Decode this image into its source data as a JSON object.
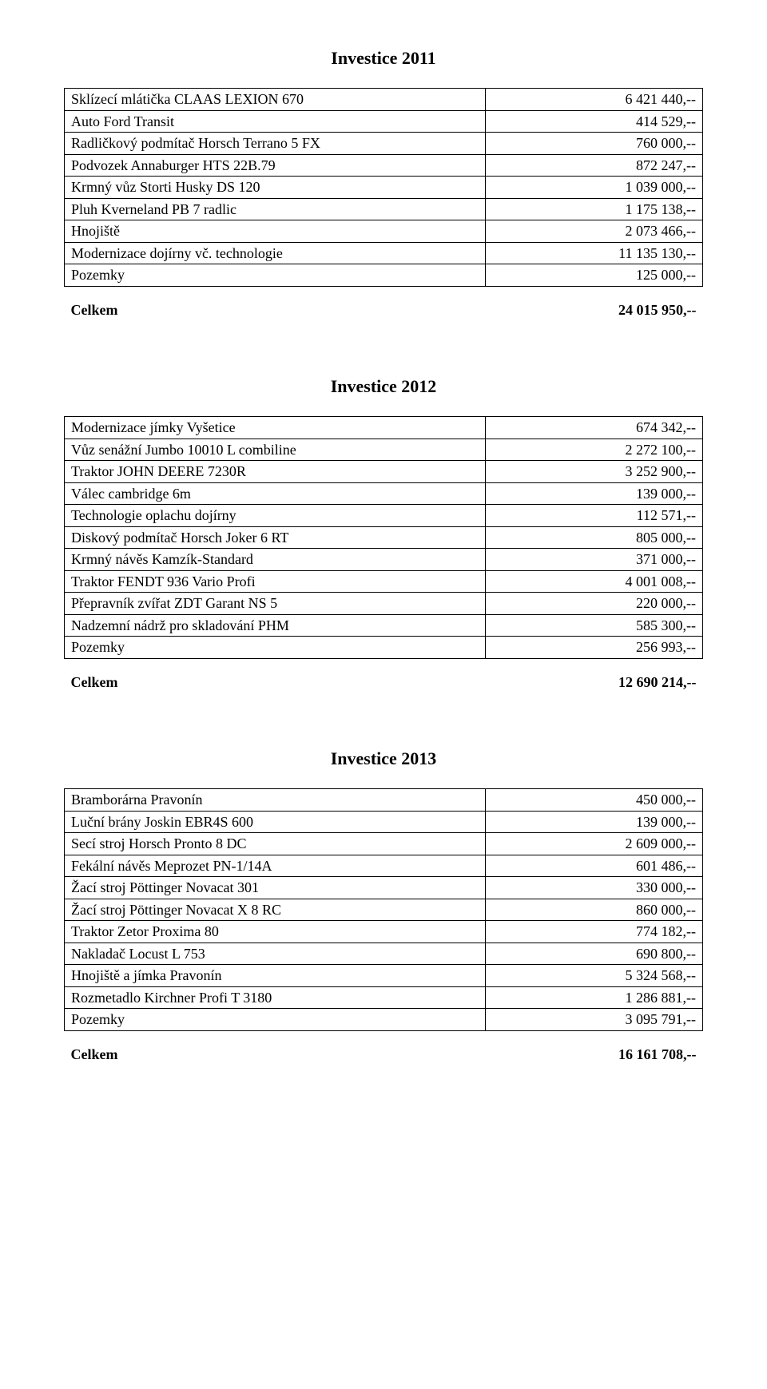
{
  "sections": [
    {
      "title": "Investice 2011",
      "rows": [
        {
          "label": "Sklízecí mlátička CLAAS LEXION 670",
          "value": "6 421 440,--"
        },
        {
          "label": "Auto Ford Transit",
          "value": "414 529,--"
        },
        {
          "label": "Radličkový podmítač Horsch Terrano 5 FX",
          "value": "760 000,--"
        },
        {
          "label": "Podvozek Annaburger HTS 22B.79",
          "value": "872 247,--"
        },
        {
          "label": "Krmný vůz Storti Husky DS 120",
          "value": "1 039 000,--"
        },
        {
          "label": "Pluh Kverneland PB 7 radlic",
          "value": "1 175 138,--"
        },
        {
          "label": "Hnojiště",
          "value": "2 073 466,--"
        },
        {
          "label": "Modernizace dojírny vč. technologie",
          "value": "11 135 130,--"
        },
        {
          "label": "Pozemky",
          "value": "125 000,--"
        }
      ],
      "total": {
        "label": "Celkem",
        "value": "24 015 950,--"
      }
    },
    {
      "title": "Investice 2012",
      "rows": [
        {
          "label": "Modernizace jímky Vyšetice",
          "value": "674 342,--"
        },
        {
          "label": "Vůz senážní Jumbo 10010 L combiline",
          "value": "2 272 100,--"
        },
        {
          "label": "Traktor JOHN DEERE 7230R",
          "value": "3 252 900,--"
        },
        {
          "label": "Válec cambridge 6m",
          "value": "139 000,--"
        },
        {
          "label": "Technologie oplachu dojírny",
          "value": "112 571,--"
        },
        {
          "label": "Diskový podmítač Horsch Joker 6 RT",
          "value": "805 000,--"
        },
        {
          "label": "Krmný návěs Kamzík-Standard",
          "value": "371 000,--"
        },
        {
          "label": "Traktor FENDT 936 Vario Profi",
          "value": "4 001 008,--"
        },
        {
          "label": "Přepravník zvířat ZDT Garant NS 5",
          "value": "220 000,--"
        },
        {
          "label": "Nadzemní nádrž pro skladování PHM",
          "value": "585 300,--"
        },
        {
          "label": "Pozemky",
          "value": "256 993,--"
        }
      ],
      "total": {
        "label": "Celkem",
        "value": "12 690 214,--"
      }
    },
    {
      "title": "Investice 2013",
      "rows": [
        {
          "label": "Bramborárna Pravonín",
          "value": "450 000,--"
        },
        {
          "label": "Luční brány Joskin EBR4S 600",
          "value": "139 000,--"
        },
        {
          "label": "Secí stroj Horsch Pronto 8 DC",
          "value": "2 609 000,--"
        },
        {
          "label": "Fekální návěs Meprozet PN-1/14A",
          "value": "601 486,--"
        },
        {
          "label": "Žací stroj Pöttinger Novacat 301",
          "value": "330 000,--"
        },
        {
          "label": "Žací stroj Pöttinger Novacat X 8 RC",
          "value": "860 000,--"
        },
        {
          "label": "Traktor Zetor Proxima 80",
          "value": "774 182,--"
        },
        {
          "label": "Nakladač Locust L 753",
          "value": "690 800,--"
        },
        {
          "label": "Hnojiště a jímka Pravonín",
          "value": "5 324 568,--"
        },
        {
          "label": "Rozmetadlo Kirchner Profi T 3180",
          "value": "1 286 881,--"
        },
        {
          "label": "Pozemky",
          "value": "3 095 791,--"
        }
      ],
      "total": {
        "label": "Celkem",
        "value": "16 161 708,--"
      }
    }
  ]
}
